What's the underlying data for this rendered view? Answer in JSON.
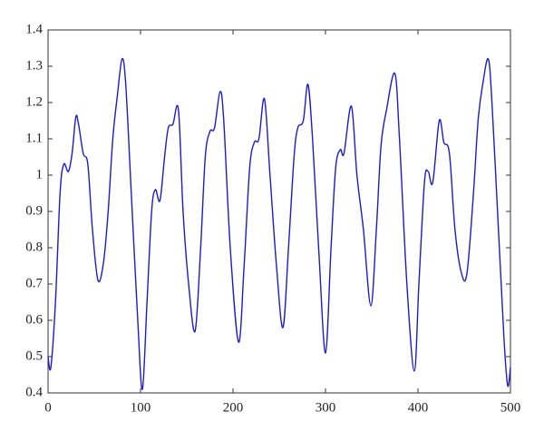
{
  "chart_data": {
    "type": "line",
    "color": "#1c1ccc",
    "x": [
      0,
      3,
      8,
      13,
      17,
      22,
      26,
      30,
      33,
      38,
      43,
      48,
      54,
      60,
      65,
      70,
      75,
      80,
      84,
      90,
      97,
      102,
      107,
      112,
      116,
      121,
      126,
      130,
      135,
      141,
      146,
      152,
      159,
      165,
      170,
      175,
      180,
      186,
      190,
      197,
      206,
      212,
      218,
      223,
      228,
      234,
      240,
      247,
      254,
      260,
      266,
      270,
      276,
      281,
      286,
      293,
      300,
      306,
      311,
      316,
      320,
      328,
      334,
      341,
      349,
      355,
      360,
      366,
      375,
      380,
      388,
      396,
      401,
      407,
      411,
      416,
      423,
      428,
      434,
      440,
      447,
      453,
      460,
      465,
      470,
      476,
      480,
      487,
      493,
      497,
      500
    ],
    "values": [
      0.5,
      0.47,
      0.65,
      0.95,
      1.03,
      1.01,
      1.06,
      1.16,
      1.14,
      1.06,
      1.03,
      0.85,
      0.71,
      0.76,
      0.9,
      1.1,
      1.22,
      1.32,
      1.25,
      0.95,
      0.6,
      0.41,
      0.65,
      0.9,
      0.96,
      0.93,
      1.05,
      1.13,
      1.14,
      1.18,
      0.9,
      0.7,
      0.57,
      0.8,
      1.05,
      1.12,
      1.13,
      1.23,
      1.15,
      0.8,
      0.54,
      0.75,
      1.02,
      1.09,
      1.1,
      1.21,
      1.0,
      0.75,
      0.58,
      0.8,
      1.05,
      1.13,
      1.15,
      1.25,
      1.1,
      0.78,
      0.51,
      0.8,
      1.02,
      1.07,
      1.06,
      1.19,
      1.0,
      0.85,
      0.64,
      0.85,
      1.08,
      1.18,
      1.28,
      1.1,
      0.7,
      0.46,
      0.7,
      0.98,
      1.01,
      0.98,
      1.15,
      1.09,
      1.06,
      0.85,
      0.73,
      0.73,
      0.95,
      1.15,
      1.25,
      1.32,
      1.2,
      0.85,
      0.55,
      0.42,
      0.47
    ],
    "xlim": [
      0,
      500
    ],
    "xticks": [
      0,
      100,
      200,
      300,
      400,
      500
    ],
    "ylim": [
      0.4,
      1.4
    ],
    "yticks": [
      0.4,
      0.5,
      0.6,
      0.7,
      0.8,
      0.9,
      1,
      1.1,
      1.2,
      1.3,
      1.4
    ]
  }
}
